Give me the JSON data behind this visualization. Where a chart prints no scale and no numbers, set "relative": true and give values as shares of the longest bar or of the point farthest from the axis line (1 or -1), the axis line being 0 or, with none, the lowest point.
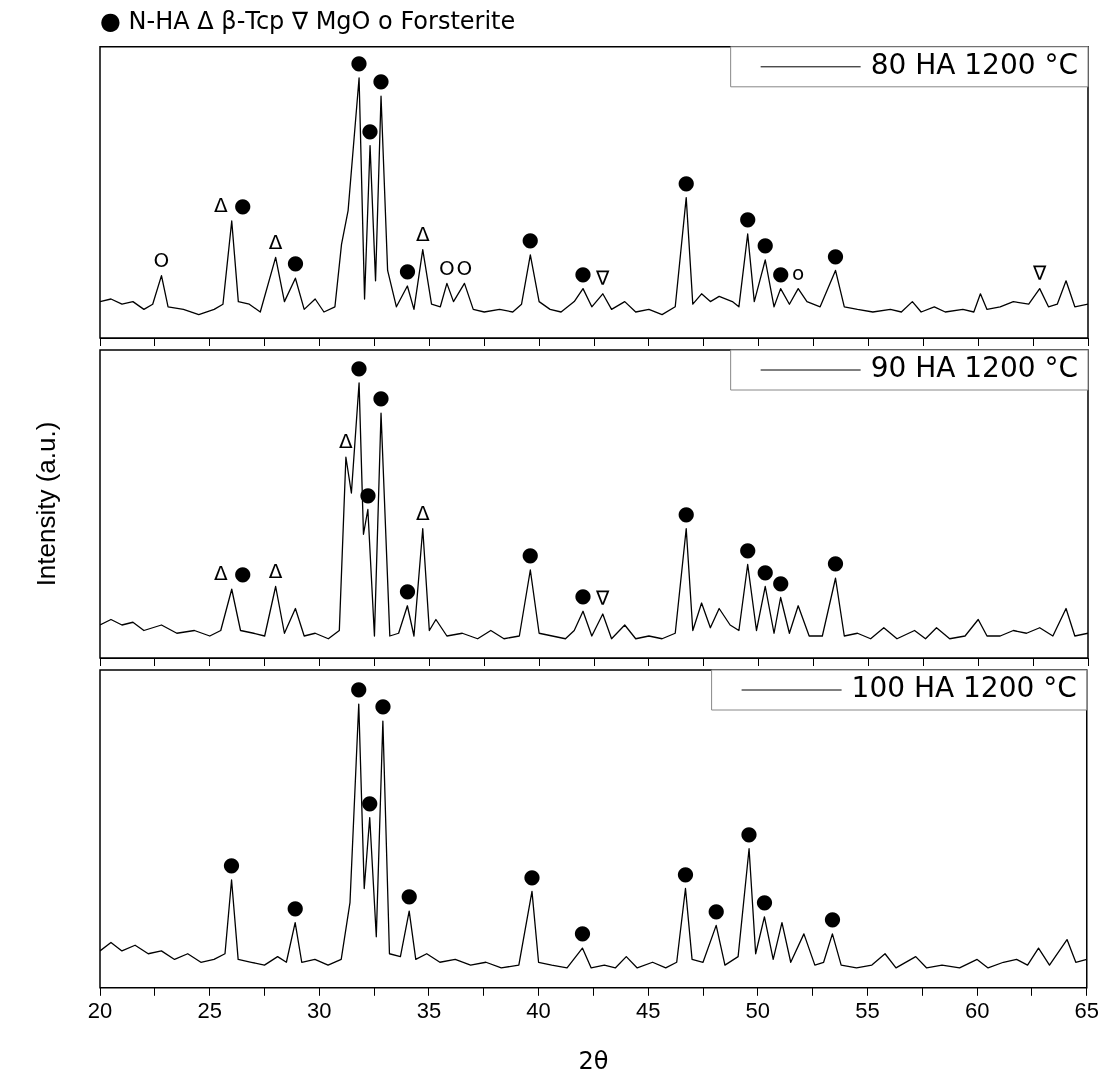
{
  "chart_data": [
    {
      "type": "line",
      "title": "● N-HA Δ β-Tcp ∇ MgO ο Forsterite",
      "relative": true,
      "xlim": [
        20,
        65
      ],
      "xticks": [
        20,
        {
          "value": 22.5,
          "label": null
        },
        25,
        {
          "value": 27.5,
          "label": null
        },
        30,
        {
          "value": 32.5,
          "label": null
        },
        35,
        {
          "value": 37.5,
          "label": null
        },
        40,
        {
          "value": 42.5,
          "label": null
        },
        45,
        {
          "value": 47.5,
          "label": null
        },
        50,
        {
          "value": 52.5,
          "label": null
        },
        55,
        {
          "value": 57.5,
          "label": null
        },
        60,
        {
          "value": 62.5,
          "label": null
        },
        65
      ],
      "tick_labels": false,
      "legend": "top right",
      "series": [
        {
          "name": "80 HA 1200 °C",
          "color": "#000000",
          "x": [
            20,
            20.5,
            21,
            21.5,
            22,
            22.4,
            22.8,
            23.1,
            23.8,
            24.5,
            25.2,
            25.6,
            26,
            26.3,
            26.8,
            27.3,
            28,
            28.4,
            28.9,
            29.3,
            29.8,
            30.2,
            30.7,
            31,
            31.3,
            31.8,
            32.05,
            32.3,
            32.55,
            32.8,
            33.1,
            33.5,
            34,
            34.3,
            34.7,
            35.1,
            35.5,
            35.8,
            36.1,
            36.6,
            37,
            37.5,
            38.2,
            38.8,
            39.2,
            39.6,
            40,
            40.5,
            41,
            41.6,
            42,
            42.4,
            42.9,
            43.3,
            43.9,
            44.4,
            45,
            45.6,
            46.2,
            46.7,
            47,
            47.4,
            47.8,
            48.2,
            48.8,
            49.1,
            49.5,
            49.8,
            50.3,
            50.7,
            51,
            51.4,
            51.8,
            52.2,
            52.8,
            53.5,
            53.9,
            54.5,
            55.2,
            56,
            56.5,
            57,
            57.4,
            58,
            58.5,
            59.3,
            59.8,
            60.1,
            60.4,
            61,
            61.6,
            62.3,
            62.8,
            63.2,
            63.6,
            64,
            64.4,
            65
          ],
          "values": [
            0.14,
            0.15,
            0.13,
            0.14,
            0.11,
            0.13,
            0.24,
            0.12,
            0.11,
            0.09,
            0.11,
            0.13,
            0.45,
            0.14,
            0.13,
            0.1,
            0.31,
            0.14,
            0.23,
            0.11,
            0.15,
            0.1,
            0.12,
            0.36,
            0.49,
            1,
            0.15,
            0.74,
            0.22,
            0.93,
            0.26,
            0.12,
            0.2,
            0.11,
            0.34,
            0.13,
            0.12,
            0.21,
            0.14,
            0.21,
            0.11,
            0.1,
            0.11,
            0.1,
            0.13,
            0.32,
            0.14,
            0.11,
            0.1,
            0.14,
            0.19,
            0.12,
            0.17,
            0.11,
            0.14,
            0.1,
            0.11,
            0.09,
            0.12,
            0.54,
            0.13,
            0.17,
            0.14,
            0.16,
            0.14,
            0.12,
            0.4,
            0.14,
            0.3,
            0.12,
            0.19,
            0.13,
            0.19,
            0.14,
            0.12,
            0.26,
            0.12,
            0.11,
            0.1,
            0.11,
            0.1,
            0.14,
            0.1,
            0.12,
            0.1,
            0.11,
            0.1,
            0.17,
            0.11,
            0.12,
            0.14,
            0.13,
            0.19,
            0.12,
            0.13,
            0.22,
            0.12,
            0.13
          ]
        }
      ],
      "annotations": [
        {
          "text": "O",
          "x": 22.8,
          "y": 0.24
        },
        {
          "text": "Δ",
          "x": 26,
          "y": 0.45
        },
        {
          "text": "●",
          "x": 26,
          "y": 0.45
        },
        {
          "text": "Δ",
          "x": 28,
          "y": 0.31
        },
        {
          "text": "●",
          "x": 28.9,
          "y": 0.23
        },
        {
          "text": "●",
          "x": 31.8,
          "y": 1
        },
        {
          "text": "●",
          "x": 32.3,
          "y": 0.74
        },
        {
          "text": "●",
          "x": 32.8,
          "y": 0.93
        },
        {
          "text": "●",
          "x": 34,
          "y": 0.2
        },
        {
          "text": "Δ",
          "x": 34.7,
          "y": 0.34
        },
        {
          "text": "O",
          "x": 35.8,
          "y": 0.21
        },
        {
          "text": "O",
          "x": 36.6,
          "y": 0.21
        },
        {
          "text": "●",
          "x": 39.6,
          "y": 0.32
        },
        {
          "text": "●",
          "x": 42,
          "y": 0.19
        },
        {
          "text": "∇",
          "x": 42.9,
          "y": 0.17
        },
        {
          "text": "●",
          "x": 46.7,
          "y": 0.54
        },
        {
          "text": "●",
          "x": 49.5,
          "y": 0.4
        },
        {
          "text": "●",
          "x": 50.3,
          "y": 0.3
        },
        {
          "text": "●",
          "x": 51,
          "y": 0.19
        },
        {
          "text": "o",
          "x": 51.8,
          "y": 0.19
        },
        {
          "text": "●",
          "x": 53.5,
          "y": 0.26
        },
        {
          "text": "∇",
          "x": 62.8,
          "y": 0.19
        }
      ]
    },
    {
      "type": "line",
      "ylabel": "Intensity (a.u.)",
      "relative": true,
      "xlim": [
        20,
        65
      ],
      "xticks": [
        20,
        {
          "value": 22.5,
          "label": null
        },
        25,
        {
          "value": 27.5,
          "label": null
        },
        30,
        {
          "value": 32.5,
          "label": null
        },
        35,
        {
          "value": 37.5,
          "label": null
        },
        40,
        {
          "value": 42.5,
          "label": null
        },
        45,
        {
          "value": 47.5,
          "label": null
        },
        50,
        {
          "value": 52.5,
          "label": null
        },
        55,
        {
          "value": 57.5,
          "label": null
        },
        60,
        {
          "value": 62.5,
          "label": null
        },
        65
      ],
      "tick_labels": false,
      "legend": "top right",
      "series": [
        {
          "name": "90 HA 1200 °C",
          "color": "#000000",
          "x": [
            20,
            20.5,
            21,
            21.5,
            22,
            22.8,
            23.5,
            24.3,
            25,
            25.5,
            26,
            26.4,
            27,
            27.5,
            28,
            28.4,
            28.9,
            29.3,
            29.8,
            30.4,
            30.9,
            31.2,
            31.45,
            31.8,
            32,
            32.2,
            32.5,
            32.8,
            33.2,
            33.6,
            34,
            34.3,
            34.7,
            35,
            35.3,
            35.8,
            36.5,
            37.2,
            37.8,
            38.4,
            39.1,
            39.6,
            40,
            40.6,
            41.2,
            41.6,
            42,
            42.4,
            42.9,
            43.3,
            43.9,
            44.4,
            45,
            45.6,
            46.2,
            46.7,
            47,
            47.4,
            47.8,
            48.2,
            48.7,
            49.1,
            49.5,
            49.9,
            50.3,
            50.7,
            51,
            51.4,
            51.8,
            52.3,
            52.9,
            53.5,
            53.9,
            54.5,
            55.1,
            55.7,
            56.3,
            57.1,
            57.6,
            58.1,
            58.7,
            59.4,
            60,
            60.4,
            61,
            61.6,
            62.2,
            62.8,
            63.4,
            64,
            64.4,
            65
          ],
          "values": [
            0.12,
            0.14,
            0.12,
            0.13,
            0.1,
            0.12,
            0.09,
            0.1,
            0.08,
            0.1,
            0.25,
            0.1,
            0.09,
            0.08,
            0.26,
            0.09,
            0.18,
            0.08,
            0.09,
            0.07,
            0.1,
            0.73,
            0.6,
            1,
            0.45,
            0.54,
            0.08,
            0.89,
            0.08,
            0.09,
            0.19,
            0.08,
            0.47,
            0.1,
            0.14,
            0.08,
            0.09,
            0.07,
            0.1,
            0.07,
            0.08,
            0.32,
            0.09,
            0.08,
            0.07,
            0.1,
            0.17,
            0.08,
            0.16,
            0.07,
            0.12,
            0.07,
            0.08,
            0.07,
            0.09,
            0.47,
            0.1,
            0.2,
            0.11,
            0.18,
            0.12,
            0.1,
            0.34,
            0.1,
            0.26,
            0.09,
            0.22,
            0.09,
            0.19,
            0.08,
            0.08,
            0.29,
            0.08,
            0.09,
            0.07,
            0.11,
            0.07,
            0.1,
            0.07,
            0.11,
            0.07,
            0.08,
            0.14,
            0.08,
            0.08,
            0.1,
            0.09,
            0.11,
            0.08,
            0.18,
            0.08,
            0.09
          ]
        }
      ],
      "annotations": [
        {
          "text": "Δ",
          "x": 26,
          "y": 0.25
        },
        {
          "text": "●",
          "x": 26,
          "y": 0.25
        },
        {
          "text": "Δ",
          "x": 28,
          "y": 0.26
        },
        {
          "text": "Δ",
          "x": 31.2,
          "y": 0.73
        },
        {
          "text": "●",
          "x": 31.8,
          "y": 1
        },
        {
          "text": "●",
          "x": 32.2,
          "y": 0.54
        },
        {
          "text": "●",
          "x": 32.8,
          "y": 0.89
        },
        {
          "text": "●",
          "x": 34,
          "y": 0.19
        },
        {
          "text": "Δ",
          "x": 34.7,
          "y": 0.47
        },
        {
          "text": "●",
          "x": 39.6,
          "y": 0.32
        },
        {
          "text": "●",
          "x": 42,
          "y": 0.17
        },
        {
          "text": "∇",
          "x": 42.9,
          "y": 0.16
        },
        {
          "text": "●",
          "x": 46.7,
          "y": 0.47
        },
        {
          "text": "●",
          "x": 49.5,
          "y": 0.34
        },
        {
          "text": "●",
          "x": 50.3,
          "y": 0.26
        },
        {
          "text": "●",
          "x": 51,
          "y": 0.22
        },
        {
          "text": "●",
          "x": 53.5,
          "y": 0.29
        }
      ]
    },
    {
      "type": "line",
      "xlabel": "2θ",
      "relative": true,
      "xlim": [
        20,
        65
      ],
      "xticks": [
        20,
        {
          "value": 22.5,
          "label": null
        },
        25,
        {
          "value": 27.5,
          "label": null
        },
        30,
        {
          "value": 32.5,
          "label": null
        },
        35,
        {
          "value": 37.5,
          "label": null
        },
        40,
        {
          "value": 42.5,
          "label": null
        },
        45,
        {
          "value": 47.5,
          "label": null
        },
        50,
        {
          "value": 52.5,
          "label": null
        },
        55,
        {
          "value": 57.5,
          "label": null
        },
        60,
        {
          "value": 62.5,
          "label": null
        },
        65
      ],
      "tick_labels": "x",
      "legend": "top right",
      "series": [
        {
          "name": "100 HA 1200 °C",
          "color": "#000000",
          "x": [
            20,
            20.5,
            21,
            21.6,
            22.2,
            22.8,
            23.4,
            24,
            24.6,
            25.2,
            25.7,
            26,
            26.3,
            26.9,
            27.5,
            28.1,
            28.5,
            28.9,
            29.2,
            29.8,
            30.4,
            31,
            31.4,
            31.8,
            32.05,
            32.3,
            32.6,
            32.9,
            33.2,
            33.7,
            34.1,
            34.4,
            34.9,
            35.5,
            36.2,
            36.9,
            37.6,
            38.3,
            39.1,
            39.7,
            40,
            40.6,
            41.3,
            42,
            42.4,
            43,
            43.5,
            44,
            44.5,
            45.2,
            45.8,
            46.3,
            46.7,
            47,
            47.5,
            48.1,
            48.5,
            49.1,
            49.6,
            49.9,
            50.3,
            50.7,
            51.1,
            51.5,
            52.1,
            52.6,
            53,
            53.4,
            53.8,
            54.5,
            55.2,
            55.8,
            56.3,
            57.2,
            57.7,
            58.4,
            59.2,
            60,
            60.5,
            61.2,
            61.8,
            62.3,
            62.8,
            63.3,
            64.1,
            64.5,
            65
          ],
          "values": [
            0.13,
            0.16,
            0.13,
            0.15,
            0.12,
            0.13,
            0.1,
            0.12,
            0.09,
            0.1,
            0.12,
            0.38,
            0.1,
            0.09,
            0.08,
            0.11,
            0.09,
            0.23,
            0.09,
            0.1,
            0.08,
            0.1,
            0.3,
            1,
            0.35,
            0.6,
            0.18,
            0.94,
            0.12,
            0.11,
            0.27,
            0.1,
            0.12,
            0.09,
            0.1,
            0.08,
            0.09,
            0.07,
            0.08,
            0.34,
            0.09,
            0.08,
            0.07,
            0.14,
            0.07,
            0.08,
            0.07,
            0.11,
            0.07,
            0.09,
            0.07,
            0.09,
            0.35,
            0.1,
            0.09,
            0.22,
            0.08,
            0.11,
            0.49,
            0.12,
            0.25,
            0.1,
            0.23,
            0.09,
            0.19,
            0.08,
            0.09,
            0.19,
            0.08,
            0.07,
            0.08,
            0.12,
            0.07,
            0.11,
            0.07,
            0.08,
            0.07,
            0.1,
            0.07,
            0.09,
            0.1,
            0.08,
            0.14,
            0.08,
            0.17,
            0.09,
            0.1
          ]
        }
      ],
      "annotations": [
        {
          "text": "●",
          "x": 26,
          "y": 0.38
        },
        {
          "text": "●",
          "x": 28.9,
          "y": 0.23
        },
        {
          "text": "●",
          "x": 31.8,
          "y": 1
        },
        {
          "text": "●",
          "x": 32.3,
          "y": 0.6
        },
        {
          "text": "●",
          "x": 32.9,
          "y": 0.94
        },
        {
          "text": "●",
          "x": 34.1,
          "y": 0.27
        },
        {
          "text": "●",
          "x": 39.7,
          "y": 0.34
        },
        {
          "text": "●",
          "x": 42,
          "y": 0.14
        },
        {
          "text": "●",
          "x": 46.7,
          "y": 0.35
        },
        {
          "text": "●",
          "x": 48.1,
          "y": 0.22
        },
        {
          "text": "●",
          "x": 49.6,
          "y": 0.49
        },
        {
          "text": "●",
          "x": 50.3,
          "y": 0.25
        },
        {
          "text": "●",
          "x": 53.4,
          "y": 0.19
        }
      ]
    }
  ]
}
